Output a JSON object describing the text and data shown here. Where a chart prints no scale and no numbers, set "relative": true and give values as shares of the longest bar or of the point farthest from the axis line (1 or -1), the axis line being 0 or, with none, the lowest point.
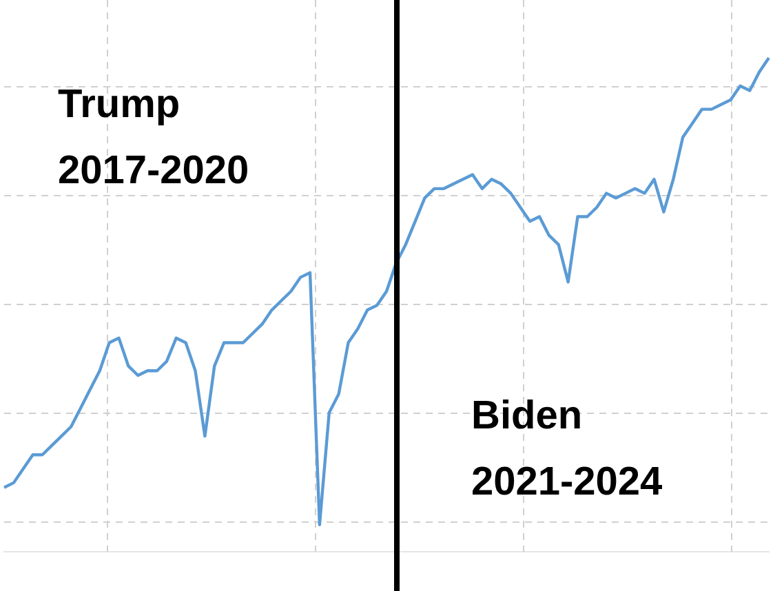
{
  "chart_data": {
    "type": "line",
    "relative": true,
    "grid": true,
    "legend": false,
    "marker": "none",
    "categories": [
      null,
      null,
      null,
      null,
      null,
      null,
      null,
      null,
      null,
      null,
      null,
      null,
      null,
      null,
      null,
      null,
      null,
      null,
      null,
      null,
      null,
      null,
      null,
      null,
      null,
      null,
      null,
      null,
      null,
      null,
      null,
      null,
      null,
      null,
      null,
      null,
      null,
      null,
      null,
      null,
      null,
      null,
      null,
      null,
      null,
      null,
      null,
      null,
      null,
      null,
      null,
      null,
      null,
      null,
      null,
      null,
      null,
      null,
      null,
      null,
      null,
      null,
      null,
      null,
      null,
      null,
      null,
      null,
      null,
      null,
      null,
      null,
      null,
      null,
      null,
      null,
      null,
      null,
      null,
      null,
      null
    ],
    "series": [
      {
        "color": "#5b9bd5",
        "values": [
          0.08,
          0.09,
          0.12,
          0.15,
          0.15,
          0.17,
          0.19,
          0.21,
          0.25,
          0.29,
          0.33,
          0.39,
          0.4,
          0.34,
          0.32,
          0.33,
          0.33,
          0.35,
          0.4,
          0.39,
          0.33,
          0.19,
          0.34,
          0.39,
          0.39,
          0.39,
          0.41,
          0.43,
          0.46,
          0.48,
          0.5,
          0.53,
          0.54,
          0,
          0.24,
          0.28,
          0.39,
          0.42,
          0.46,
          0.47,
          0.5,
          0.56,
          0.6,
          0.65,
          0.7,
          0.72,
          0.72,
          0.73,
          0.74,
          0.75,
          0.72,
          0.74,
          0.73,
          0.71,
          0.68,
          0.65,
          0.66,
          0.62,
          0.6,
          0.52,
          0.66,
          0.66,
          0.68,
          0.71,
          0.7,
          0.71,
          0.72,
          0.71,
          0.74,
          0.67,
          0.74,
          0.83,
          0.86,
          0.89,
          0.89,
          0.9,
          0.91,
          0.94,
          0.93,
          0.97,
          1
        ]
      }
    ],
    "annotations": [
      "Trump\n2017-2020",
      "Biden\n2021-2024"
    ]
  }
}
